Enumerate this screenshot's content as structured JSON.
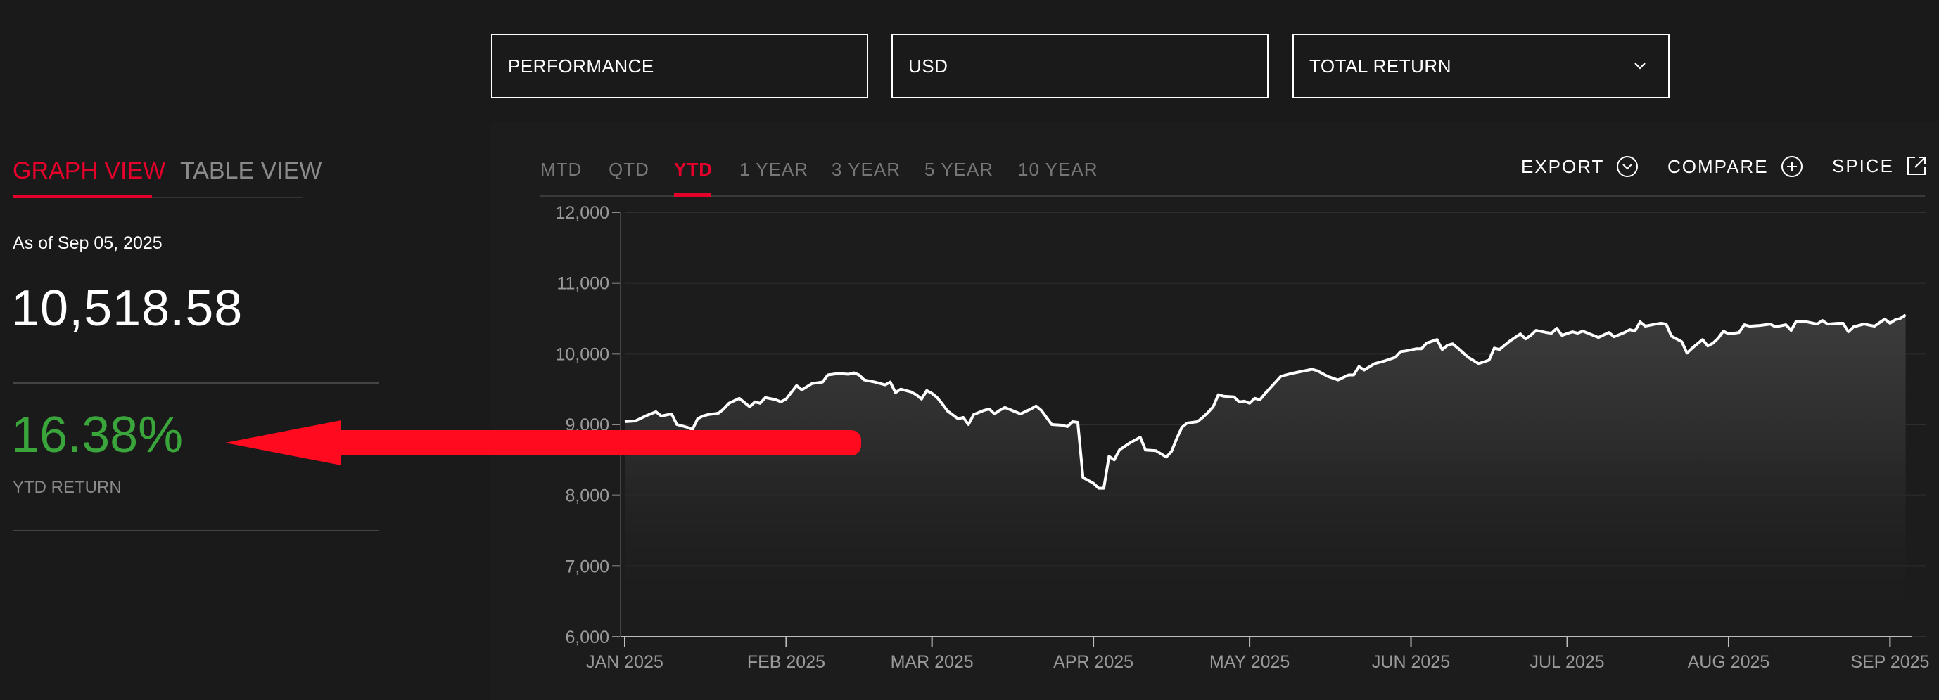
{
  "selectors": {
    "metric": "PERFORMANCE",
    "currency": "USD",
    "return_type": "TOTAL RETURN"
  },
  "view_tabs": {
    "graph": "GRAPH VIEW",
    "table": "TABLE VIEW"
  },
  "summary": {
    "as_of": "As of Sep 05, 2025",
    "value": "10,518.58",
    "return": "16.38%",
    "return_label": "YTD RETURN"
  },
  "range_tabs": [
    "MTD",
    "QTD",
    "YTD",
    "1 YEAR",
    "3 YEAR",
    "5 YEAR",
    "10 YEAR"
  ],
  "active_range": "YTD",
  "actions": {
    "export": "EXPORT",
    "compare": "COMPARE",
    "spice": "SPICE"
  },
  "colors": {
    "accent": "#e4002b",
    "positive": "#3aa53a",
    "annotation_arrow": "#ff0a1e"
  },
  "chart_data": {
    "type": "area",
    "y_ticks": [
      "12,000",
      "11,000",
      "10,000",
      "9,000",
      "8,000",
      "7,000",
      "6,000"
    ],
    "ylim": [
      6000,
      12000
    ],
    "x_ticks": [
      "JAN 2025",
      "FEB 2025",
      "MAR 2025",
      "APR 2025",
      "MAY 2025",
      "JUN 2025",
      "JUL 2025",
      "AUG 2025",
      "SEP 2025"
    ],
    "x_tick_days": [
      0,
      31,
      59,
      90,
      120,
      151,
      181,
      212,
      243
    ],
    "xlim_days": [
      0,
      247
    ],
    "grid": true,
    "series": [
      {
        "points": [
          [
            0,
            9040
          ],
          [
            2,
            9050
          ],
          [
            4,
            9120
          ],
          [
            6,
            9180
          ],
          [
            7,
            9120
          ],
          [
            9,
            9150
          ],
          [
            10,
            9000
          ],
          [
            12,
            8960
          ],
          [
            13,
            8930
          ],
          [
            14,
            9080
          ],
          [
            15,
            9120
          ],
          [
            16,
            9140
          ],
          [
            18,
            9160
          ],
          [
            19,
            9220
          ],
          [
            20,
            9300
          ],
          [
            22,
            9370
          ],
          [
            24,
            9250
          ],
          [
            25,
            9320
          ],
          [
            26,
            9300
          ],
          [
            27,
            9380
          ],
          [
            29,
            9350
          ],
          [
            30,
            9320
          ],
          [
            31,
            9360
          ],
          [
            33,
            9550
          ],
          [
            34,
            9490
          ],
          [
            36,
            9580
          ],
          [
            38,
            9600
          ],
          [
            39,
            9700
          ],
          [
            41,
            9720
          ],
          [
            43,
            9710
          ],
          [
            44,
            9730
          ],
          [
            45,
            9700
          ],
          [
            46,
            9630
          ],
          [
            48,
            9600
          ],
          [
            50,
            9560
          ],
          [
            51,
            9600
          ],
          [
            52,
            9450
          ],
          [
            53,
            9500
          ],
          [
            55,
            9460
          ],
          [
            56,
            9420
          ],
          [
            57,
            9360
          ],
          [
            58,
            9480
          ],
          [
            59,
            9440
          ],
          [
            60,
            9380
          ],
          [
            61,
            9290
          ],
          [
            62,
            9190
          ],
          [
            64,
            9080
          ],
          [
            65,
            9100
          ],
          [
            66,
            9000
          ],
          [
            67,
            9140
          ],
          [
            69,
            9200
          ],
          [
            70,
            9220
          ],
          [
            71,
            9150
          ],
          [
            72,
            9200
          ],
          [
            73,
            9240
          ],
          [
            75,
            9180
          ],
          [
            76,
            9150
          ],
          [
            78,
            9220
          ],
          [
            79,
            9260
          ],
          [
            80,
            9200
          ],
          [
            82,
            9000
          ],
          [
            84,
            8990
          ],
          [
            85,
            8970
          ],
          [
            86,
            9040
          ],
          [
            87,
            9030
          ],
          [
            88,
            8250
          ],
          [
            90,
            8170
          ],
          [
            91,
            8100
          ],
          [
            92,
            8100
          ],
          [
            93,
            8550
          ],
          [
            94,
            8500
          ],
          [
            95,
            8640
          ],
          [
            97,
            8740
          ],
          [
            99,
            8820
          ],
          [
            100,
            8640
          ],
          [
            102,
            8630
          ],
          [
            104,
            8540
          ],
          [
            105,
            8620
          ],
          [
            106,
            8800
          ],
          [
            107,
            8960
          ],
          [
            108,
            9020
          ],
          [
            110,
            9040
          ],
          [
            111,
            9100
          ],
          [
            112,
            9170
          ],
          [
            113,
            9250
          ],
          [
            114,
            9420
          ],
          [
            115,
            9400
          ],
          [
            117,
            9390
          ],
          [
            118,
            9320
          ],
          [
            119,
            9330
          ],
          [
            120,
            9300
          ],
          [
            121,
            9370
          ],
          [
            122,
            9350
          ],
          [
            123,
            9440
          ],
          [
            124,
            9520
          ],
          [
            126,
            9680
          ],
          [
            128,
            9720
          ],
          [
            130,
            9750
          ],
          [
            132,
            9780
          ],
          [
            133,
            9760
          ],
          [
            135,
            9680
          ],
          [
            137,
            9630
          ],
          [
            139,
            9700
          ],
          [
            140,
            9700
          ],
          [
            141,
            9820
          ],
          [
            142,
            9770
          ],
          [
            144,
            9860
          ],
          [
            146,
            9900
          ],
          [
            148,
            9950
          ],
          [
            149,
            10030
          ],
          [
            150,
            10040
          ],
          [
            152,
            10070
          ],
          [
            153,
            10070
          ],
          [
            154,
            10150
          ],
          [
            156,
            10200
          ],
          [
            157,
            10060
          ],
          [
            158,
            10120
          ],
          [
            159,
            10140
          ],
          [
            160,
            10080
          ],
          [
            162,
            9950
          ],
          [
            164,
            9860
          ],
          [
            166,
            9910
          ],
          [
            167,
            10080
          ],
          [
            168,
            10060
          ],
          [
            170,
            10180
          ],
          [
            171,
            10230
          ],
          [
            172,
            10280
          ],
          [
            173,
            10210
          ],
          [
            174,
            10260
          ],
          [
            175,
            10330
          ],
          [
            177,
            10300
          ],
          [
            178,
            10290
          ],
          [
            179,
            10360
          ],
          [
            180,
            10260
          ],
          [
            182,
            10310
          ],
          [
            183,
            10290
          ],
          [
            184,
            10320
          ],
          [
            185,
            10290
          ],
          [
            187,
            10230
          ],
          [
            189,
            10300
          ],
          [
            190,
            10240
          ],
          [
            191,
            10270
          ],
          [
            192,
            10300
          ],
          [
            193,
            10340
          ],
          [
            194,
            10320
          ],
          [
            195,
            10450
          ],
          [
            196,
            10390
          ],
          [
            198,
            10420
          ],
          [
            199,
            10430
          ],
          [
            200,
            10420
          ],
          [
            201,
            10250
          ],
          [
            203,
            10170
          ],
          [
            204,
            10010
          ],
          [
            205,
            10080
          ],
          [
            206,
            10140
          ],
          [
            207,
            10200
          ],
          [
            208,
            10110
          ],
          [
            209,
            10150
          ],
          [
            210,
            10220
          ],
          [
            211,
            10320
          ],
          [
            212,
            10280
          ],
          [
            214,
            10300
          ],
          [
            215,
            10410
          ],
          [
            216,
            10390
          ],
          [
            218,
            10400
          ],
          [
            220,
            10420
          ],
          [
            221,
            10380
          ],
          [
            223,
            10410
          ],
          [
            224,
            10330
          ],
          [
            225,
            10460
          ],
          [
            227,
            10450
          ],
          [
            229,
            10420
          ],
          [
            230,
            10470
          ],
          [
            231,
            10420
          ],
          [
            233,
            10430
          ],
          [
            234,
            10430
          ],
          [
            235,
            10310
          ],
          [
            236,
            10380
          ],
          [
            237,
            10400
          ],
          [
            238,
            10420
          ],
          [
            240,
            10390
          ],
          [
            242,
            10490
          ],
          [
            243,
            10430
          ],
          [
            244,
            10480
          ],
          [
            245,
            10500
          ],
          [
            246,
            10550
          ]
        ]
      }
    ]
  }
}
